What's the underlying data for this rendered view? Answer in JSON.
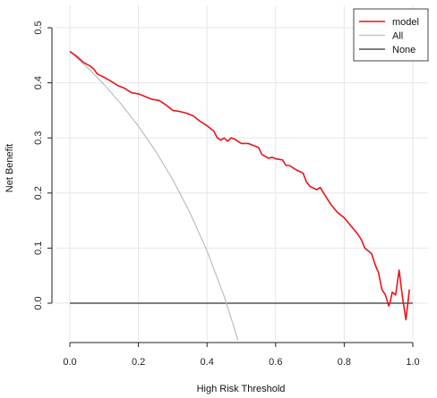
{
  "chart_data": {
    "type": "line",
    "title": "",
    "xlabel": "High Risk Threshold",
    "ylabel": "Net Benefit",
    "xlim": [
      0,
      1
    ],
    "ylim": [
      -0.07,
      0.51
    ],
    "xticks": [
      "0.0",
      "0.2",
      "0.4",
      "0.6",
      "0.8",
      "1.0"
    ],
    "yticks": [
      "0.0",
      "0.1",
      "0.2",
      "0.3",
      "0.4",
      "0.5"
    ],
    "grid": true,
    "legend_position": "top-right",
    "series": [
      {
        "name": "model",
        "color": "#e8141c",
        "x": [
          0.0,
          0.02,
          0.04,
          0.06,
          0.07,
          0.08,
          0.1,
          0.12,
          0.14,
          0.16,
          0.18,
          0.2,
          0.22,
          0.24,
          0.26,
          0.28,
          0.3,
          0.32,
          0.34,
          0.36,
          0.38,
          0.4,
          0.42,
          0.43,
          0.44,
          0.45,
          0.46,
          0.47,
          0.48,
          0.5,
          0.52,
          0.54,
          0.55,
          0.56,
          0.58,
          0.59,
          0.6,
          0.62,
          0.63,
          0.64,
          0.66,
          0.68,
          0.69,
          0.7,
          0.72,
          0.73,
          0.74,
          0.76,
          0.78,
          0.8,
          0.82,
          0.84,
          0.85,
          0.86,
          0.88,
          0.89,
          0.9,
          0.91,
          0.92,
          0.93,
          0.935,
          0.94,
          0.95,
          0.96,
          0.97,
          0.98,
          0.99
        ],
        "y": [
          0.457,
          0.448,
          0.437,
          0.43,
          0.425,
          0.416,
          0.41,
          0.403,
          0.395,
          0.39,
          0.382,
          0.38,
          0.375,
          0.37,
          0.368,
          0.36,
          0.35,
          0.348,
          0.345,
          0.34,
          0.33,
          0.322,
          0.312,
          0.3,
          0.296,
          0.3,
          0.294,
          0.3,
          0.298,
          0.29,
          0.29,
          0.285,
          0.283,
          0.27,
          0.263,
          0.265,
          0.262,
          0.26,
          0.25,
          0.25,
          0.242,
          0.236,
          0.22,
          0.212,
          0.206,
          0.21,
          0.2,
          0.18,
          0.165,
          0.155,
          0.14,
          0.125,
          0.115,
          0.1,
          0.09,
          0.07,
          0.055,
          0.025,
          0.015,
          -0.005,
          0.005,
          0.02,
          0.015,
          0.06,
          0.01,
          -0.03,
          0.025
        ]
      },
      {
        "name": "All",
        "color": "#bdbdbd",
        "x": [
          0.0,
          0.05,
          0.1,
          0.15,
          0.2,
          0.25,
          0.3,
          0.35,
          0.4,
          0.45,
          0.5
        ],
        "y": [
          0.457,
          0.4284,
          0.3967,
          0.3612,
          0.3212,
          0.276,
          0.2243,
          0.1646,
          0.095,
          0.0127,
          -0.086
        ]
      },
      {
        "name": "None",
        "color": "#333333",
        "x": [
          0.0,
          1.0
        ],
        "y": [
          0.0,
          0.0
        ]
      }
    ]
  }
}
